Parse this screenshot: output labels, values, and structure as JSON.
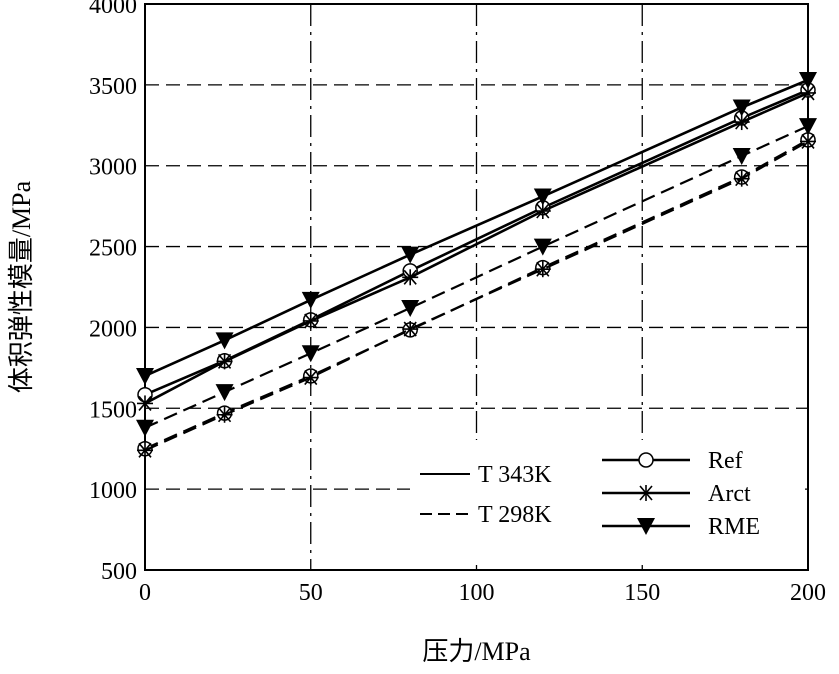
{
  "chart_data": {
    "type": "line",
    "title": "",
    "xlabel": "压力/MPa",
    "ylabel": "体积弹性模量/MPa",
    "xlim": [
      0,
      200
    ],
    "ylim": [
      500,
      4000
    ],
    "xticks": [
      0,
      50,
      100,
      150,
      200
    ],
    "yticks": [
      500,
      1000,
      1500,
      2000,
      2500,
      3000,
      3500,
      4000
    ],
    "grid": true,
    "legend_position": "bottom-right",
    "legend_linestyles": [
      {
        "label": "T 343K",
        "dash": "solid"
      },
      {
        "label": "T 298K",
        "dash": "dashed"
      }
    ],
    "legend_markers": [
      {
        "label": "Ref",
        "marker": "circle"
      },
      {
        "label": "Arct",
        "marker": "asterisk"
      },
      {
        "label": "RME",
        "marker": "triangle-down"
      }
    ],
    "x": [
      0,
      24,
      50,
      80,
      120,
      180,
      200
    ],
    "series": [
      {
        "name": "Ref T 343K",
        "marker": "circle",
        "dash": "solid",
        "values": [
          1584,
          1794,
          2047,
          2350,
          2740,
          3295,
          3468
        ]
      },
      {
        "name": "Arct T 343K",
        "marker": "asterisk",
        "dash": "solid",
        "values": [
          1530,
          1790,
          2040,
          2310,
          2720,
          3270,
          3450
        ]
      },
      {
        "name": "RME T 343K",
        "marker": "triangle-down",
        "dash": "solid",
        "values": [
          1700,
          1920,
          2170,
          2450,
          2810,
          3360,
          3530
        ]
      },
      {
        "name": "Ref T 298K",
        "marker": "circle",
        "dash": "dashed",
        "values": [
          1250,
          1470,
          1700,
          1985,
          2370,
          2930,
          3160
        ]
      },
      {
        "name": "Arct T 298K",
        "marker": "asterisk",
        "dash": "dashed",
        "values": [
          1240,
          1460,
          1690,
          1990,
          2360,
          2920,
          3150
        ]
      },
      {
        "name": "RME T 298K",
        "marker": "triangle-down",
        "dash": "dashed",
        "values": [
          1380,
          1600,
          1840,
          2120,
          2500,
          3060,
          3245
        ]
      }
    ]
  }
}
